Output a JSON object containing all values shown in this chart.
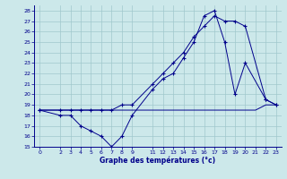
{
  "bg_color": "#cce8ea",
  "grid_color": "#a0c8cc",
  "line_color": "#00008b",
  "title": "Graphe des températures (°c)",
  "xlim": [
    -0.5,
    23.5
  ],
  "ylim": [
    15,
    28.5
  ],
  "yticks": [
    15,
    16,
    17,
    18,
    19,
    20,
    21,
    22,
    23,
    24,
    25,
    26,
    27,
    28
  ],
  "xticks": [
    0,
    2,
    3,
    4,
    5,
    6,
    7,
    8,
    9,
    11,
    12,
    13,
    14,
    15,
    16,
    17,
    18,
    19,
    20,
    21,
    22,
    23
  ],
  "line_flat_x": [
    0,
    2,
    3,
    4,
    5,
    6,
    7,
    8,
    9,
    11,
    12,
    13,
    14,
    15,
    16,
    17,
    18,
    19,
    20,
    21,
    22,
    23
  ],
  "line_flat_y": [
    18.5,
    18.5,
    18.5,
    18.5,
    18.5,
    18.5,
    18.5,
    18.5,
    18.5,
    18.5,
    18.5,
    18.5,
    18.5,
    18.5,
    18.5,
    18.5,
    18.5,
    18.5,
    18.5,
    18.5,
    19.0,
    19.0
  ],
  "line_min_x": [
    0,
    2,
    3,
    4,
    5,
    6,
    7,
    8,
    9,
    11,
    12,
    13,
    14,
    15,
    16,
    17,
    18,
    19,
    20,
    22,
    23
  ],
  "line_min_y": [
    18.5,
    18.0,
    18.0,
    17.0,
    16.5,
    16.0,
    15.0,
    16.0,
    18.0,
    20.5,
    21.5,
    22.0,
    23.5,
    25.0,
    27.5,
    28.0,
    25.0,
    20.0,
    23.0,
    19.5,
    19.0
  ],
  "line_max_x": [
    0,
    2,
    3,
    4,
    5,
    6,
    7,
    8,
    9,
    11,
    12,
    13,
    14,
    15,
    16,
    17,
    18,
    19,
    20,
    22,
    23
  ],
  "line_max_y": [
    18.5,
    18.5,
    18.5,
    18.5,
    18.5,
    18.5,
    18.5,
    19.0,
    19.0,
    21.0,
    22.0,
    23.0,
    24.0,
    25.5,
    26.5,
    27.5,
    27.0,
    27.0,
    26.5,
    19.5,
    19.0
  ]
}
